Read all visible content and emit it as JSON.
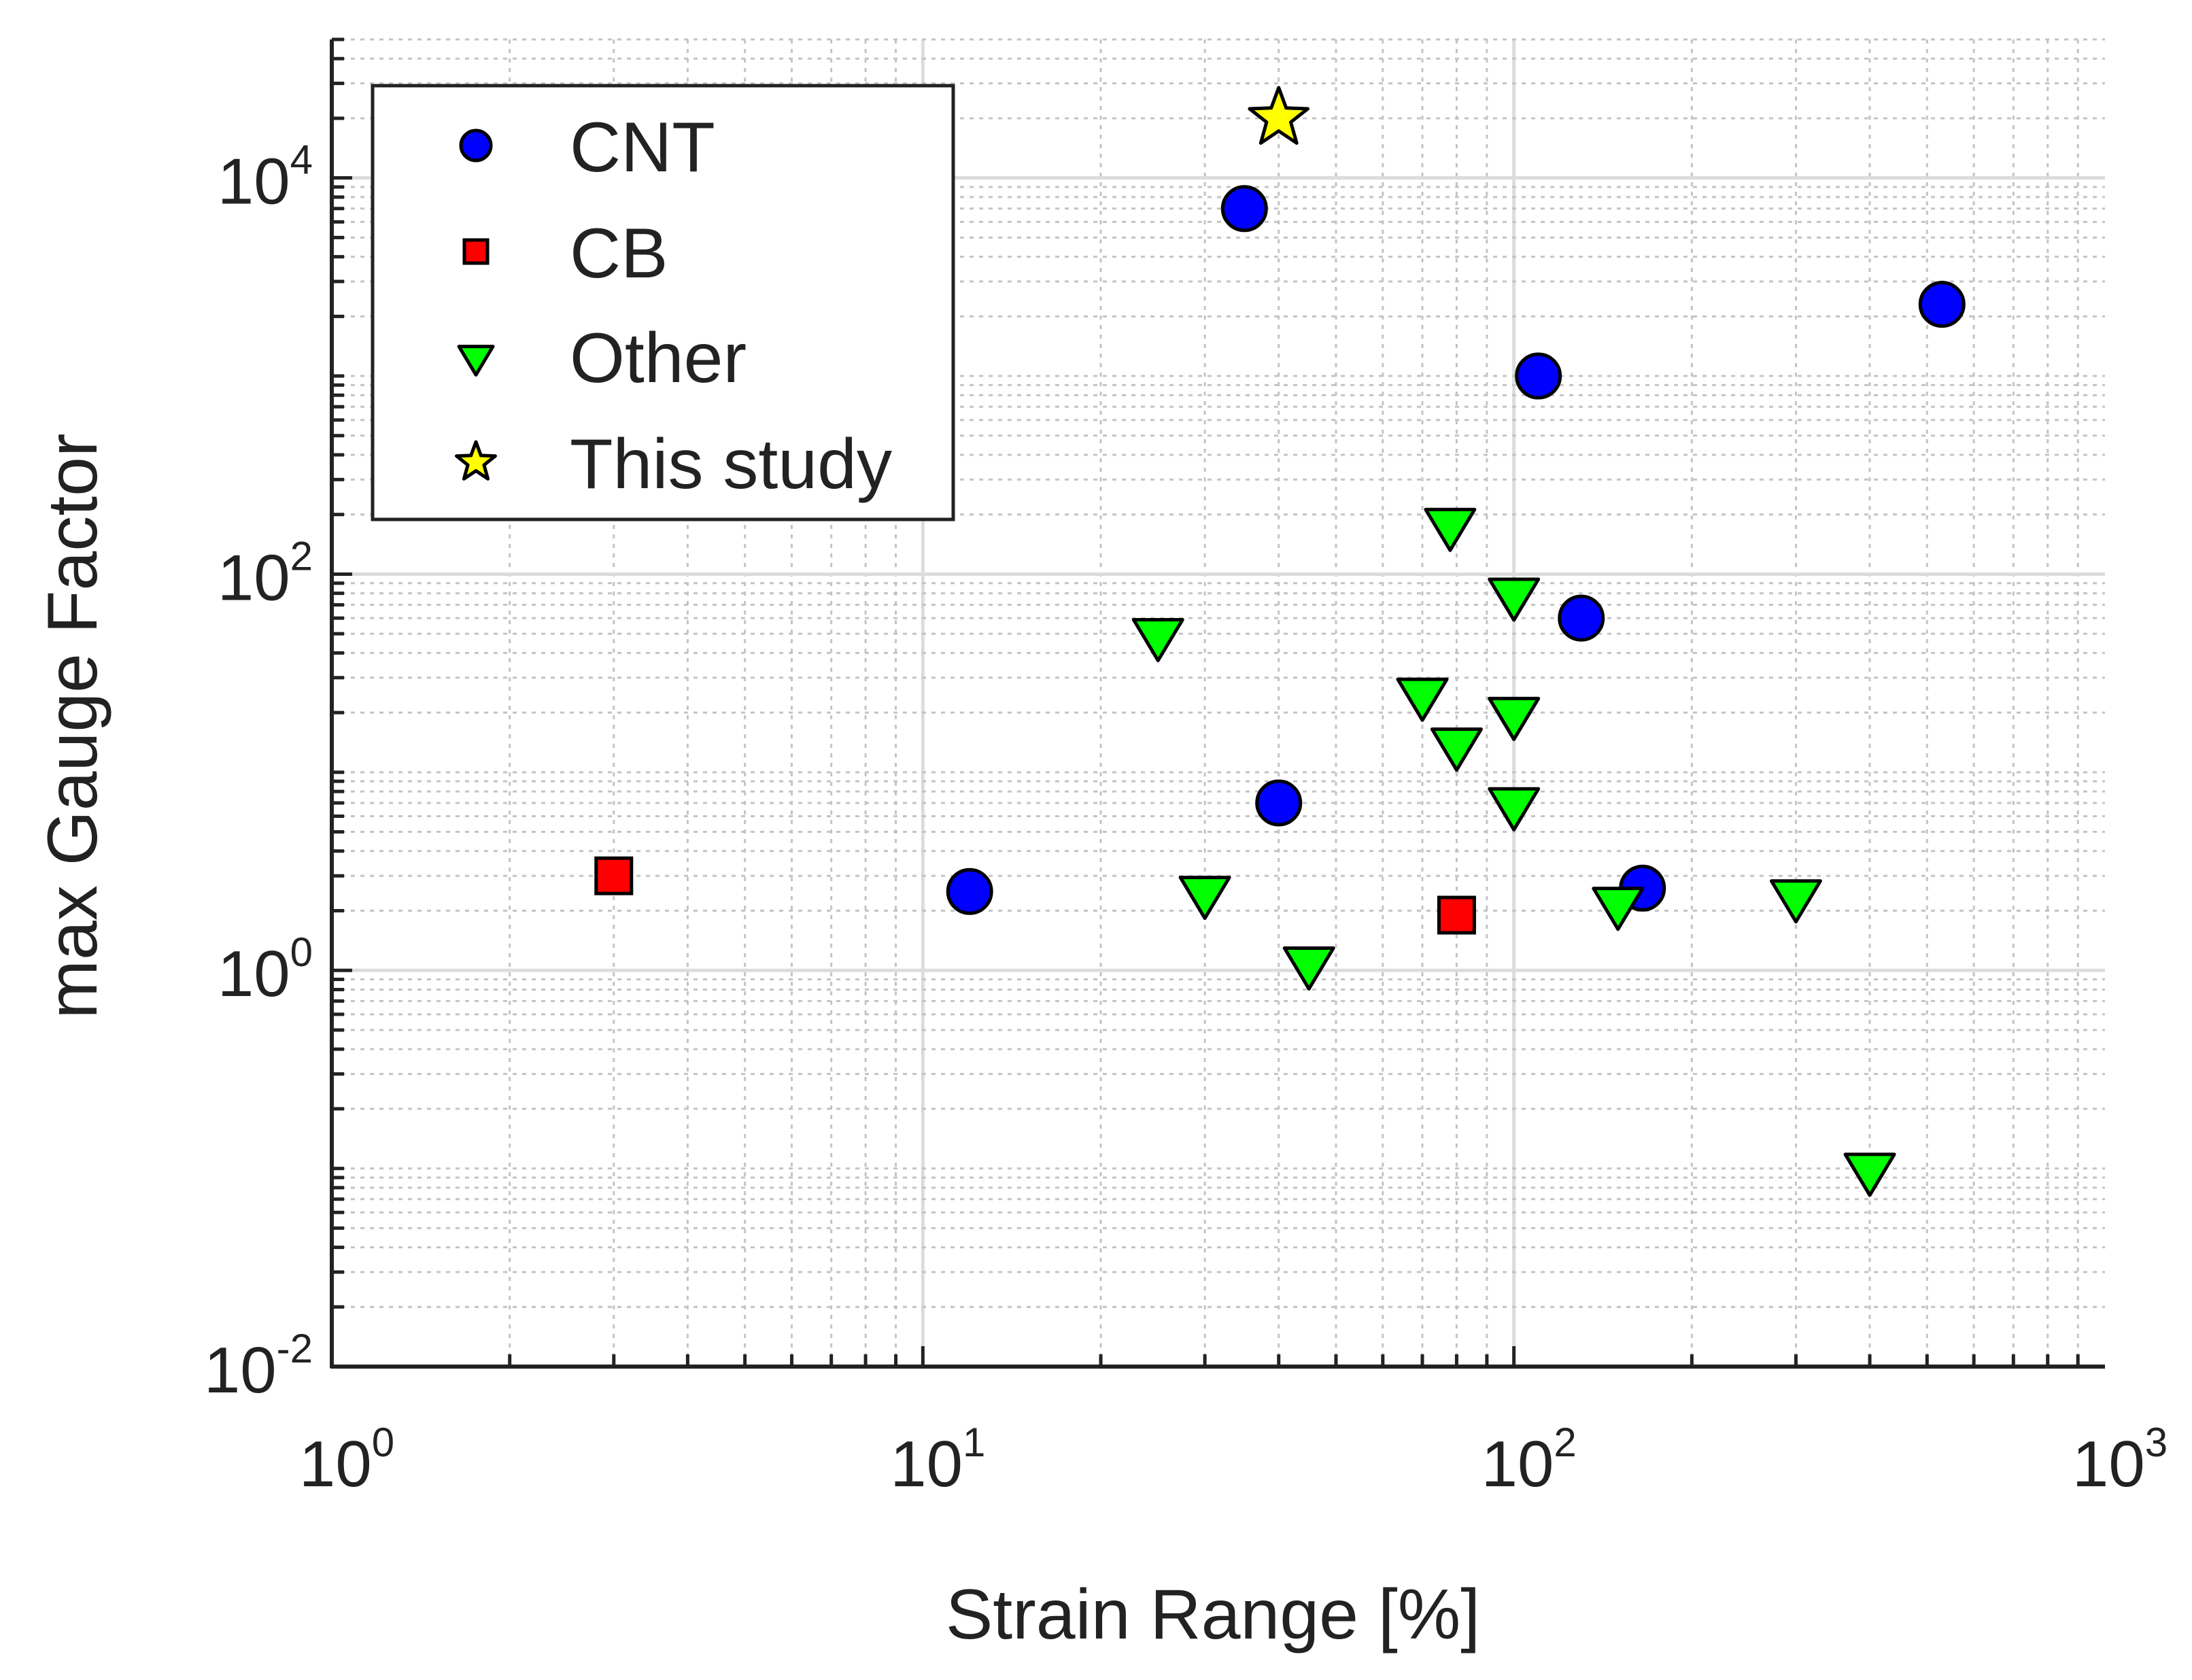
{
  "chart_data": {
    "type": "scatter",
    "title": "",
    "xlabel": "Strain Range [%]",
    "ylabel": "max Gauge Factor",
    "xscale": "log",
    "yscale": "log",
    "xlim": [
      1,
      1000
    ],
    "ylim": [
      0.01,
      50000
    ],
    "grid": true,
    "legend_position": "top-left",
    "x_ticks": [
      {
        "base": "10",
        "exp": "0",
        "value": 1
      },
      {
        "base": "10",
        "exp": "1",
        "value": 10
      },
      {
        "base": "10",
        "exp": "2",
        "value": 100
      },
      {
        "base": "10",
        "exp": "3",
        "value": 1000
      }
    ],
    "y_ticks": [
      {
        "base": "10",
        "exp": "-2",
        "value": 0.01
      },
      {
        "base": "10",
        "exp": "0",
        "value": 1
      },
      {
        "base": "10",
        "exp": "2",
        "value": 100
      },
      {
        "base": "10",
        "exp": "4",
        "value": 10000
      }
    ],
    "series": [
      {
        "name": "CNT",
        "marker": "circle",
        "color": "#0000ff",
        "points": [
          {
            "x": 12,
            "y": 2.5
          },
          {
            "x": 35,
            "y": 7000
          },
          {
            "x": 40,
            "y": 7
          },
          {
            "x": 110,
            "y": 1000
          },
          {
            "x": 130,
            "y": 60
          },
          {
            "x": 165,
            "y": 2.6
          },
          {
            "x": 530,
            "y": 2300
          }
        ]
      },
      {
        "name": "CB",
        "marker": "square",
        "color": "#ff0000",
        "points": [
          {
            "x": 3,
            "y": 3
          },
          {
            "x": 80,
            "y": 1.9
          }
        ]
      },
      {
        "name": "Other",
        "marker": "triangle-down",
        "color": "#00ff00",
        "points": [
          {
            "x": 25,
            "y": 50
          },
          {
            "x": 30,
            "y": 2.5
          },
          {
            "x": 45,
            "y": 1.1
          },
          {
            "x": 70,
            "y": 25
          },
          {
            "x": 78,
            "y": 180
          },
          {
            "x": 80,
            "y": 14
          },
          {
            "x": 100,
            "y": 80
          },
          {
            "x": 100,
            "y": 20
          },
          {
            "x": 100,
            "y": 7
          },
          {
            "x": 150,
            "y": 2.2
          },
          {
            "x": 300,
            "y": 2.4
          },
          {
            "x": 400,
            "y": 0.1
          }
        ]
      },
      {
        "name": "This study",
        "marker": "star",
        "color": "#ffff00",
        "points": [
          {
            "x": 40,
            "y": 20000
          }
        ]
      }
    ]
  }
}
